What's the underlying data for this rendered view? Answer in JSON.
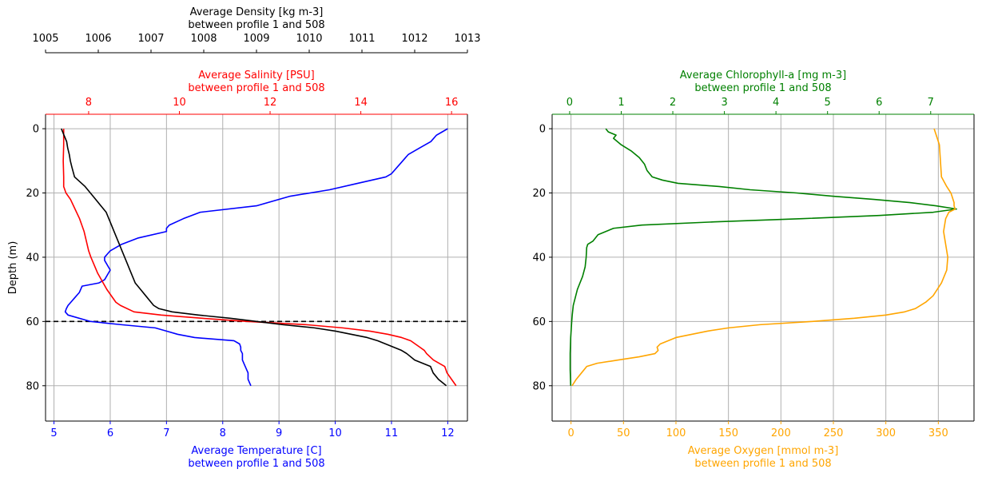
{
  "colors": {
    "temperature": "#0000ff",
    "salinity": "#ff0000",
    "density": "#000000",
    "chlorophyll": "#008000",
    "oxygen": "#ffa500",
    "grid": "#b0b0b0",
    "mld_line": "#000000"
  },
  "chart_data": [
    {
      "type": "line",
      "panel": "left",
      "ylabel": "Depth (m)",
      "ylim": [
        91,
        -4.5
      ],
      "y_ticks": [
        0,
        20,
        40,
        60,
        80
      ],
      "grid": true,
      "reference_line": {
        "y": 60,
        "style": "dashed"
      },
      "axes": {
        "temperature": {
          "label": [
            "Average Temperature [C]",
            "between profile 1 and 508"
          ],
          "position": "bottom",
          "range": [
            4.85,
            12.35
          ],
          "ticks": [
            5,
            6,
            7,
            8,
            9,
            10,
            11,
            12
          ]
        },
        "salinity": {
          "label": [
            "Average Salinity [PSU]",
            "between profile 1 and 508"
          ],
          "position": "top",
          "range": [
            7.05,
            16.35
          ],
          "ticks": [
            8,
            10,
            12,
            14,
            16
          ]
        },
        "density": {
          "label": [
            "Average Density [kg m-3]",
            "between profile 1 and 508"
          ],
          "position": "top-offset",
          "range": [
            1005,
            1013
          ],
          "ticks": [
            1005,
            1006,
            1007,
            1008,
            1009,
            1010,
            1011,
            1012,
            1013
          ]
        }
      },
      "series": [
        {
          "key": "temperature",
          "axis": "temperature",
          "depth": [
            0,
            1,
            2,
            4,
            6,
            8,
            10,
            14,
            15,
            17,
            19,
            21,
            24,
            26,
            28,
            30,
            31,
            32,
            34,
            36,
            38,
            39,
            40,
            41,
            44,
            47,
            48,
            49,
            51,
            53,
            54,
            55,
            56,
            57,
            58,
            60,
            61,
            62,
            63,
            64,
            65,
            66,
            67,
            68,
            69,
            70,
            72,
            74,
            76,
            78,
            80
          ],
          "values": [
            12.0,
            11.9,
            11.8,
            11.7,
            11.5,
            11.3,
            11.2,
            11.0,
            10.9,
            10.4,
            9.9,
            9.2,
            8.6,
            7.6,
            7.3,
            7.05,
            7.0,
            7.0,
            6.5,
            6.2,
            6.0,
            5.95,
            5.9,
            5.9,
            6.0,
            5.9,
            5.8,
            5.5,
            5.45,
            5.35,
            5.3,
            5.25,
            5.22,
            5.2,
            5.25,
            5.65,
            6.2,
            6.8,
            7.0,
            7.2,
            7.5,
            8.2,
            8.3,
            8.32,
            8.32,
            8.35,
            8.35,
            8.4,
            8.45,
            8.45,
            8.5
          ]
        },
        {
          "key": "salinity",
          "axis": "salinity",
          "depth": [
            0,
            2,
            5,
            10,
            15,
            18,
            20,
            22,
            25,
            28,
            30,
            32,
            35,
            38,
            40,
            45,
            50,
            54,
            55,
            57,
            58,
            59,
            60,
            61,
            62,
            63,
            64,
            65,
            66,
            67,
            68,
            69,
            70,
            72,
            74,
            76,
            78,
            80
          ],
          "values": [
            7.45,
            7.45,
            7.45,
            7.44,
            7.45,
            7.45,
            7.5,
            7.6,
            7.7,
            7.8,
            7.85,
            7.9,
            7.95,
            8.0,
            8.05,
            8.2,
            8.4,
            8.6,
            8.7,
            9.0,
            9.6,
            10.5,
            11.5,
            12.8,
            13.6,
            14.2,
            14.6,
            14.9,
            15.1,
            15.2,
            15.3,
            15.4,
            15.45,
            15.6,
            15.85,
            15.9,
            16.0,
            16.1
          ]
        },
        {
          "key": "density",
          "axis": "density",
          "depth": [
            0,
            2,
            4,
            6,
            8,
            10,
            12,
            15,
            18,
            20,
            22,
            24,
            26,
            28,
            30,
            32,
            34,
            36,
            38,
            40,
            42,
            44,
            46,
            48,
            50,
            52,
            54,
            55,
            56,
            57,
            58,
            59,
            60,
            61,
            62,
            63,
            64,
            65,
            66,
            67,
            68,
            69,
            70,
            72,
            74,
            76,
            78,
            80
          ],
          "values": [
            1005.3,
            1005.35,
            1005.4,
            1005.42,
            1005.45,
            1005.47,
            1005.5,
            1005.55,
            1005.75,
            1005.85,
            1005.95,
            1006.05,
            1006.15,
            1006.2,
            1006.25,
            1006.3,
            1006.35,
            1006.4,
            1006.45,
            1006.5,
            1006.55,
            1006.6,
            1006.65,
            1006.7,
            1006.8,
            1006.9,
            1007.0,
            1007.05,
            1007.15,
            1007.4,
            1007.9,
            1008.5,
            1009.0,
            1009.5,
            1010.1,
            1010.5,
            1010.8,
            1011.1,
            1011.3,
            1011.45,
            1011.6,
            1011.75,
            1011.85,
            1012.0,
            1012.3,
            1012.35,
            1012.45,
            1012.6
          ]
        }
      ]
    },
    {
      "type": "line",
      "panel": "right",
      "ylim": [
        91,
        -4.5
      ],
      "y_ticks": [
        0,
        20,
        40,
        60,
        80
      ],
      "grid": true,
      "axes": {
        "chlorophyll": {
          "label": [
            "Average Chlorophyll-a [mg m-3]",
            "between profile 1 and 508"
          ],
          "position": "top",
          "range": [
            -0.34,
            7.84
          ],
          "ticks": [
            0,
            1,
            2,
            3,
            4,
            5,
            6,
            7
          ]
        },
        "oxygen": {
          "label": [
            "Average Oxygen [mmol m-3]",
            "between profile 1 and 508"
          ],
          "position": "bottom",
          "range": [
            -18,
            384
          ],
          "ticks": [
            0,
            50,
            100,
            150,
            200,
            250,
            300,
            350
          ]
        }
      },
      "series": [
        {
          "key": "chlorophyll",
          "axis": "chlorophyll",
          "depth": [
            0,
            1,
            2,
            3,
            5,
            7,
            9,
            11,
            13,
            14,
            15,
            16,
            17,
            18,
            19,
            20,
            21,
            22,
            23,
            24,
            25,
            26,
            27,
            28,
            29,
            30,
            31,
            33,
            35,
            36,
            37,
            40,
            43,
            46,
            48,
            50,
            55,
            58,
            60,
            65,
            70,
            75,
            80
          ],
          "values": [
            0.7,
            0.75,
            0.9,
            0.85,
            1.0,
            1.2,
            1.35,
            1.45,
            1.5,
            1.55,
            1.6,
            1.8,
            2.1,
            2.9,
            3.5,
            4.4,
            5.1,
            5.9,
            6.6,
            7.1,
            7.5,
            7.05,
            6.0,
            4.5,
            2.8,
            1.4,
            0.85,
            0.55,
            0.45,
            0.35,
            0.33,
            0.32,
            0.3,
            0.25,
            0.2,
            0.15,
            0.07,
            0.05,
            0.04,
            0.02,
            0.01,
            0.01,
            0.02
          ]
        },
        {
          "key": "oxygen",
          "axis": "oxygen",
          "depth": [
            0,
            1,
            3,
            5,
            10,
            15,
            18,
            20,
            22,
            23,
            24,
            25,
            26,
            28,
            30,
            32,
            34,
            36,
            38,
            40,
            44,
            48,
            52,
            54,
            56,
            57,
            58,
            59,
            60,
            61,
            62,
            63,
            65,
            67,
            68,
            69,
            70,
            71,
            72,
            73,
            74,
            76,
            78,
            80
          ],
          "values": [
            346,
            347,
            349,
            351,
            352,
            353,
            358,
            362,
            364,
            365,
            365,
            366,
            360,
            357,
            356,
            355,
            356,
            357,
            358,
            359,
            358,
            353,
            345,
            338,
            328,
            318,
            300,
            270,
            230,
            180,
            150,
            130,
            100,
            85,
            82,
            83,
            80,
            65,
            45,
            25,
            15,
            10,
            5,
            1
          ]
        }
      ]
    }
  ]
}
